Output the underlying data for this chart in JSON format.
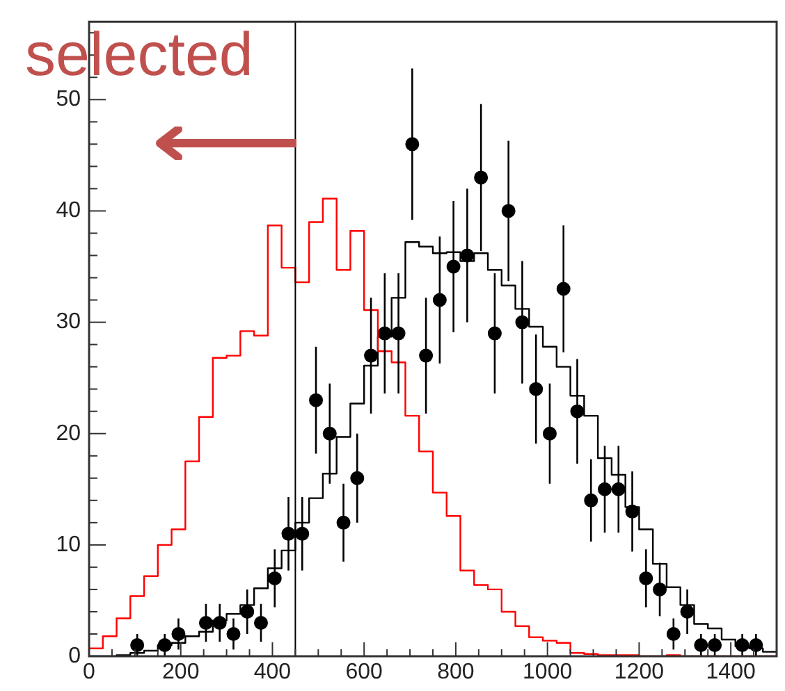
{
  "chart_data": {
    "type": "histogram",
    "bins": [
      0,
      30,
      60,
      90,
      120,
      150,
      180,
      210,
      240,
      270,
      300,
      330,
      360,
      390,
      420,
      450,
      480,
      510,
      540,
      570,
      600,
      630,
      660,
      690,
      720,
      750,
      780,
      810,
      840,
      870,
      900,
      930,
      960,
      990,
      1020,
      1050,
      1080,
      1110,
      1140,
      1170,
      1200,
      1230,
      1260,
      1290,
      1320,
      1350,
      1380,
      1410,
      1440,
      1470,
      1500
    ],
    "series": [
      {
        "color": "#ff0000",
        "values": [
          0.7,
          1.8,
          3.4,
          5.4,
          7.2,
          10.0,
          11.4,
          17.5,
          21.5,
          26.8,
          27.0,
          29.2,
          28.8,
          38.7,
          34.9,
          33.6,
          39.0,
          41.1,
          34.7,
          38.2,
          31.1,
          27.4,
          26.4,
          21.6,
          18.4,
          14.7,
          12.6,
          7.7,
          6.4,
          6.0,
          4.0,
          2.7,
          1.7,
          1.4,
          1.2,
          0.3,
          0.2,
          0.1,
          0.1,
          0.1,
          0,
          0,
          0.1,
          0,
          0,
          0,
          0,
          0,
          0,
          0
        ]
      },
      {
        "color": "#000000",
        "values": [
          0,
          0,
          0.1,
          0.3,
          0.5,
          1.0,
          1.2,
          1.8,
          2.2,
          3.2,
          3.8,
          4.6,
          6.1,
          7.9,
          9.5,
          12.0,
          14.2,
          16.4,
          19.7,
          22.7,
          26.1,
          28.7,
          32.2,
          37.2,
          36.8,
          36.2,
          36.3,
          35.5,
          36.2,
          34.7,
          33.3,
          31.2,
          29.6,
          27.8,
          26.0,
          23.4,
          21.6,
          17.8,
          16.3,
          13.4,
          11.4,
          8.3,
          6.2,
          4.6,
          2.9,
          2.5,
          1.5,
          0.9,
          0.7,
          0.4
        ]
      },
      {
        "type": "scatter",
        "color": "#000000",
        "x": [
          105,
          165,
          195,
          255,
          285,
          315,
          345,
          375,
          405,
          435,
          465,
          495,
          525,
          555,
          585,
          615,
          645,
          675,
          705,
          735,
          765,
          795,
          825,
          855,
          885,
          915,
          945,
          975,
          1005,
          1035,
          1065,
          1095,
          1125,
          1155,
          1185,
          1215,
          1245,
          1275,
          1305,
          1335,
          1365,
          1425,
          1455
        ],
        "values": [
          1,
          1,
          2,
          3,
          3,
          2,
          4,
          3,
          7,
          11,
          11,
          23,
          20,
          12,
          16,
          27,
          29,
          29,
          46,
          27,
          32,
          35,
          36,
          43,
          29,
          40,
          30,
          24,
          20,
          33,
          22,
          14,
          15,
          15,
          13,
          7,
          6,
          2,
          4,
          1,
          1,
          1,
          1
        ],
        "errors": [
          1,
          1,
          1.4,
          1.7,
          1.7,
          1.4,
          2,
          1.7,
          2.6,
          3.3,
          3.3,
          4.8,
          4.5,
          3.5,
          4,
          5.2,
          5.4,
          5.4,
          6.8,
          5.2,
          5.7,
          5.9,
          6,
          6.6,
          5.4,
          6.3,
          5.5,
          4.9,
          4.5,
          5.7,
          4.7,
          3.7,
          3.9,
          3.9,
          3.6,
          2.6,
          2.4,
          1.4,
          2,
          1,
          1,
          1,
          1
        ]
      }
    ],
    "xlim": [
      0,
      1500
    ],
    "ylim": [
      0,
      57
    ],
    "xticks": [
      0,
      {
        "value": 50,
        "label": null
      },
      {
        "value": 100,
        "label": null
      },
      {
        "value": 150,
        "label": null
      },
      200,
      {
        "value": 250,
        "label": null
      },
      {
        "value": 300,
        "label": null
      },
      {
        "value": 350,
        "label": null
      },
      400,
      {
        "value": 450,
        "label": null
      },
      {
        "value": 500,
        "label": null
      },
      {
        "value": 550,
        "label": null
      },
      600,
      {
        "value": 650,
        "label": null
      },
      {
        "value": 700,
        "label": null
      },
      {
        "value": 750,
        "label": null
      },
      800,
      {
        "value": 850,
        "label": null
      },
      {
        "value": 900,
        "label": null
      },
      {
        "value": 950,
        "label": null
      },
      1000,
      {
        "value": 1050,
        "label": null
      },
      {
        "value": 1100,
        "label": null
      },
      {
        "value": 1150,
        "label": null
      },
      1200,
      {
        "value": 1250,
        "label": null
      },
      {
        "value": 1300,
        "label": null
      },
      {
        "value": 1350,
        "label": null
      },
      1400,
      {
        "value": 1450,
        "label": null
      }
    ],
    "yticks": [
      0,
      {
        "value": 2,
        "label": null
      },
      {
        "value": 4,
        "label": null
      },
      {
        "value": 6,
        "label": null
      },
      {
        "value": 8,
        "label": null
      },
      10,
      {
        "value": 12,
        "label": null
      },
      {
        "value": 14,
        "label": null
      },
      {
        "value": 16,
        "label": null
      },
      {
        "value": 18,
        "label": null
      },
      20,
      {
        "value": 22,
        "label": null
      },
      {
        "value": 24,
        "label": null
      },
      {
        "value": 26,
        "label": null
      },
      {
        "value": 28,
        "label": null
      },
      30,
      {
        "value": 32,
        "label": null
      },
      {
        "value": 34,
        "label": null
      },
      {
        "value": 36,
        "label": null
      },
      {
        "value": 38,
        "label": null
      },
      40,
      {
        "value": 42,
        "label": null
      },
      {
        "value": 44,
        "label": null
      },
      {
        "value": 46,
        "label": null
      },
      {
        "value": 48,
        "label": null
      },
      50,
      {
        "value": 52,
        "label": null
      },
      {
        "value": 54,
        "label": null
      },
      {
        "value": 56,
        "label": null
      }
    ],
    "ref_lines": [
      {
        "axis": "x",
        "value": 450,
        "color": "#000000"
      }
    ],
    "annotations": [
      "selected"
    ],
    "marker": "circle",
    "grid": false,
    "legend": false
  }
}
